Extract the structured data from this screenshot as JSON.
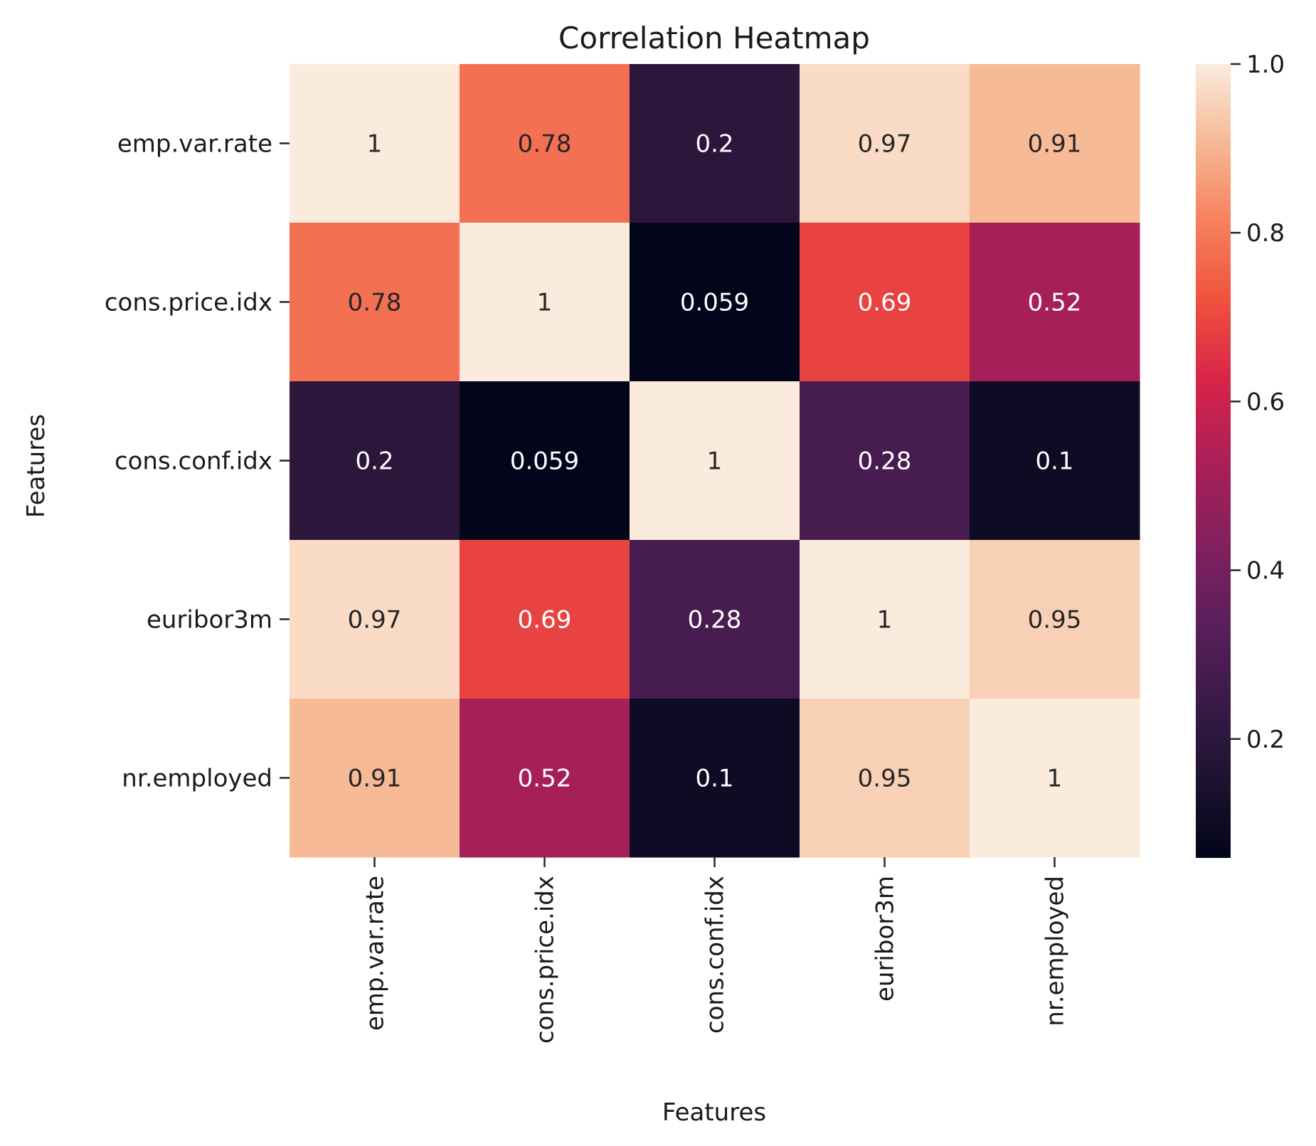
{
  "chart_data": {
    "type": "heatmap",
    "title": "Correlation Heatmap",
    "xlabel": "Features",
    "ylabel": "Features",
    "x_categories": [
      "emp.var.rate",
      "cons.price.idx",
      "cons.conf.idx",
      "euribor3m",
      "nr.employed"
    ],
    "y_categories": [
      "emp.var.rate",
      "cons.price.idx",
      "cons.conf.idx",
      "euribor3m",
      "nr.employed"
    ],
    "values": [
      [
        1,
        0.78,
        0.2,
        0.97,
        0.91
      ],
      [
        0.78,
        1,
        0.059,
        0.69,
        0.52
      ],
      [
        0.2,
        0.059,
        1,
        0.28,
        0.1
      ],
      [
        0.97,
        0.69,
        0.28,
        1,
        0.95
      ],
      [
        0.91,
        0.52,
        0.1,
        0.95,
        1
      ]
    ],
    "annotations": [
      [
        "1",
        "0.78",
        "0.2",
        "0.97",
        "0.91"
      ],
      [
        "0.78",
        "1",
        "0.059",
        "0.69",
        "0.52"
      ],
      [
        "0.2",
        "0.059",
        "1",
        "0.28",
        "0.1"
      ],
      [
        "0.97",
        "0.69",
        "0.28",
        "1",
        "0.95"
      ],
      [
        "0.91",
        "0.52",
        "0.1",
        "0.95",
        "1"
      ]
    ],
    "colorbar": {
      "min": 0.059,
      "max": 1.0,
      "ticks": [
        0.2,
        0.4,
        0.6,
        0.8,
        1.0
      ],
      "tick_labels": [
        "0.2",
        "0.4",
        "0.6",
        "0.8",
        "1.0"
      ],
      "colormap": "rocket"
    },
    "colormap_stops": [
      {
        "t": 0.0,
        "color": "#03051a"
      },
      {
        "t": 0.1,
        "color": "#1d1330"
      },
      {
        "t": 0.2,
        "color": "#3b1a49"
      },
      {
        "t": 0.3,
        "color": "#5d1f5c"
      },
      {
        "t": 0.4,
        "color": "#84205e"
      },
      {
        "t": 0.5,
        "color": "#ab1f58"
      },
      {
        "t": 0.6,
        "color": "#d62449"
      },
      {
        "t": 0.7,
        "color": "#f0503e"
      },
      {
        "t": 0.8,
        "color": "#f6805d"
      },
      {
        "t": 0.9,
        "color": "#f6b894"
      },
      {
        "t": 1.0,
        "color": "#faebdd"
      }
    ]
  }
}
